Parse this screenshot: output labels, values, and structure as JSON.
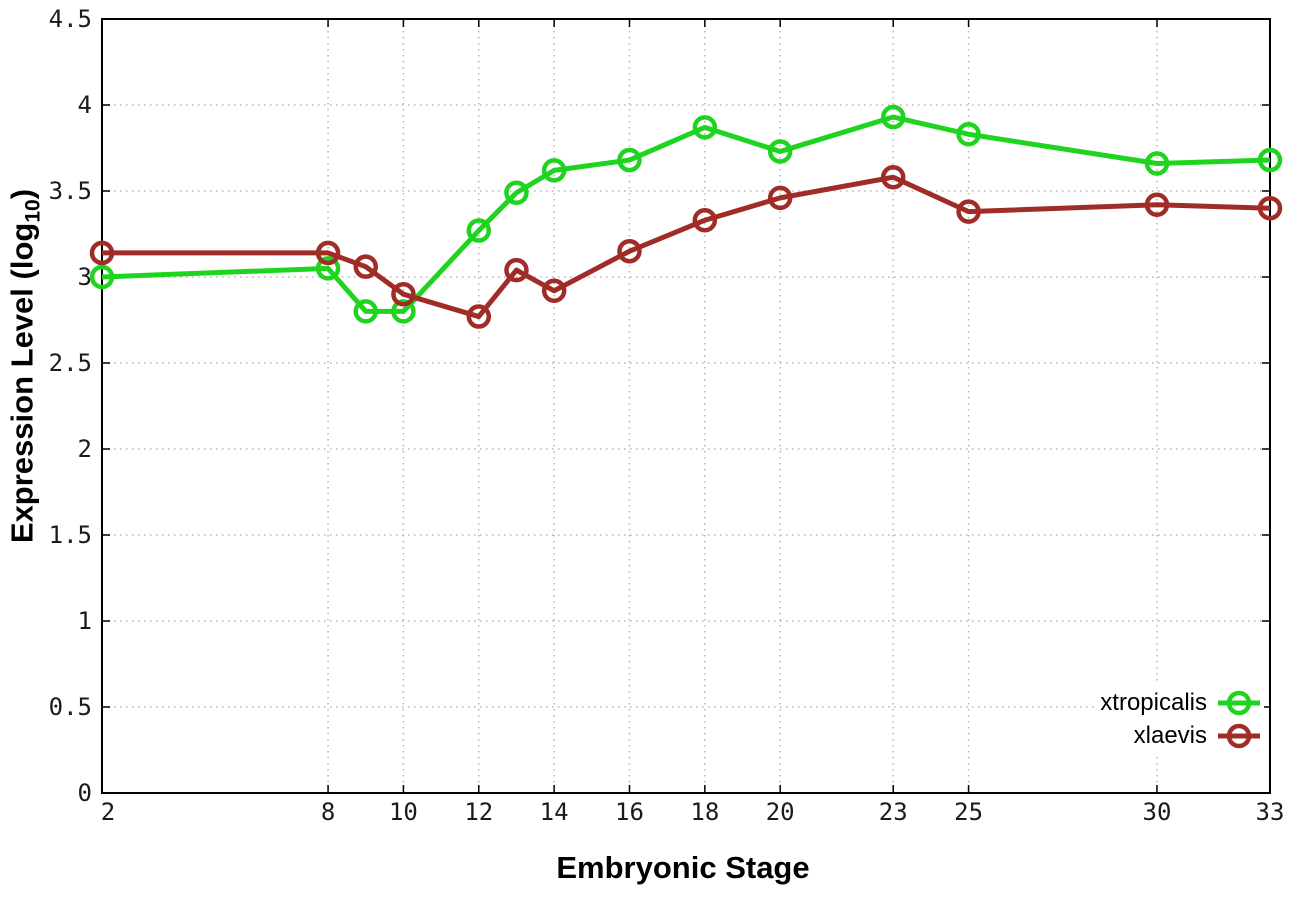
{
  "chart_data": {
    "type": "line",
    "title": "",
    "xlabel": "Embryonic Stage",
    "ylabel": "Expression Level (log10)",
    "ylabel_parts": {
      "text": "Expression Level (log",
      "sub": "10",
      "suffix": ")"
    },
    "x": [
      2,
      8,
      9,
      10,
      12,
      13,
      14,
      16,
      18,
      20,
      23,
      25,
      30,
      33
    ],
    "series": [
      {
        "name": "xtropicalis",
        "color": "#1fd41f",
        "values": [
          3.0,
          3.05,
          2.8,
          2.8,
          3.27,
          3.49,
          3.62,
          3.68,
          3.87,
          3.73,
          3.93,
          3.83,
          3.66,
          3.68
        ]
      },
      {
        "name": "xlaevis",
        "color": "#a02c28",
        "values": [
          3.14,
          3.14,
          3.06,
          2.9,
          2.77,
          3.04,
          2.92,
          3.15,
          3.33,
          3.46,
          3.58,
          3.38,
          3.42,
          3.4
        ]
      }
    ],
    "xlim": [
      2,
      33
    ],
    "ylim": [
      0,
      4.5
    ],
    "xticks": [
      2,
      8,
      10,
      12,
      14,
      16,
      18,
      20,
      23,
      25,
      30,
      33
    ],
    "yticks": [
      0,
      0.5,
      1,
      1.5,
      2,
      2.5,
      3,
      3.5,
      4,
      4.5
    ],
    "grid": true,
    "legend_position": "bottom-right"
  },
  "colors": {
    "grid": "#b5b5b5",
    "axis": "#000000",
    "tick_label": "#1a1a1a"
  }
}
